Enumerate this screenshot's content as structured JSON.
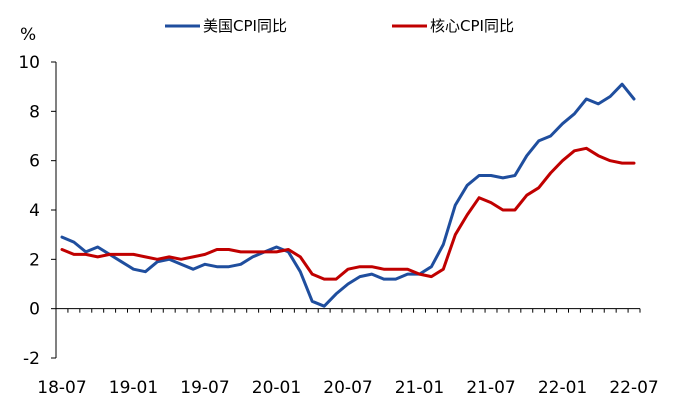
{
  "chart_data": {
    "type": "line",
    "y_unit": "%",
    "ylim": [
      -2,
      10
    ],
    "yticks": [
      -2,
      0,
      2,
      4,
      6,
      8,
      10
    ],
    "xtick_labels": [
      "18-07",
      "19-01",
      "19-07",
      "20-01",
      "20-07",
      "21-01",
      "21-07",
      "22-01",
      "22-07"
    ],
    "x": [
      "18-07",
      "18-08",
      "18-09",
      "18-10",
      "18-11",
      "18-12",
      "19-01",
      "19-02",
      "19-03",
      "19-04",
      "19-05",
      "19-06",
      "19-07",
      "19-08",
      "19-09",
      "19-10",
      "19-11",
      "19-12",
      "20-01",
      "20-02",
      "20-03",
      "20-04",
      "20-05",
      "20-06",
      "20-07",
      "20-08",
      "20-09",
      "20-10",
      "20-11",
      "20-12",
      "21-01",
      "21-02",
      "21-03",
      "21-04",
      "21-05",
      "21-06",
      "21-07",
      "21-08",
      "21-09",
      "21-10",
      "21-11",
      "21-12",
      "22-01",
      "22-02",
      "22-03",
      "22-04",
      "22-05",
      "22-06",
      "22-07"
    ],
    "series": [
      {
        "name": "美国CPI同比",
        "color": "#1f4e9e",
        "values": [
          2.9,
          2.7,
          2.3,
          2.5,
          2.2,
          1.9,
          1.6,
          1.5,
          1.9,
          2.0,
          1.8,
          1.6,
          1.8,
          1.7,
          1.7,
          1.8,
          2.1,
          2.3,
          2.5,
          2.3,
          1.5,
          0.3,
          0.1,
          0.6,
          1.0,
          1.3,
          1.4,
          1.2,
          1.2,
          1.4,
          1.4,
          1.7,
          2.6,
          4.2,
          5.0,
          5.4,
          5.4,
          5.3,
          5.4,
          6.2,
          6.8,
          7.0,
          7.5,
          7.9,
          8.5,
          8.3,
          8.6,
          9.1,
          8.5
        ]
      },
      {
        "name": "核心CPI同比",
        "color": "#c00000",
        "values": [
          2.4,
          2.2,
          2.2,
          2.1,
          2.2,
          2.2,
          2.2,
          2.1,
          2.0,
          2.1,
          2.0,
          2.1,
          2.2,
          2.4,
          2.4,
          2.3,
          2.3,
          2.3,
          2.3,
          2.4,
          2.1,
          1.4,
          1.2,
          1.2,
          1.6,
          1.7,
          1.7,
          1.6,
          1.6,
          1.6,
          1.4,
          1.3,
          1.6,
          3.0,
          3.8,
          4.5,
          4.3,
          4.0,
          4.0,
          4.6,
          4.9,
          5.5,
          6.0,
          6.4,
          6.5,
          6.2,
          6.0,
          5.9,
          5.9
        ]
      }
    ],
    "grid": false,
    "legend_position": "top"
  }
}
